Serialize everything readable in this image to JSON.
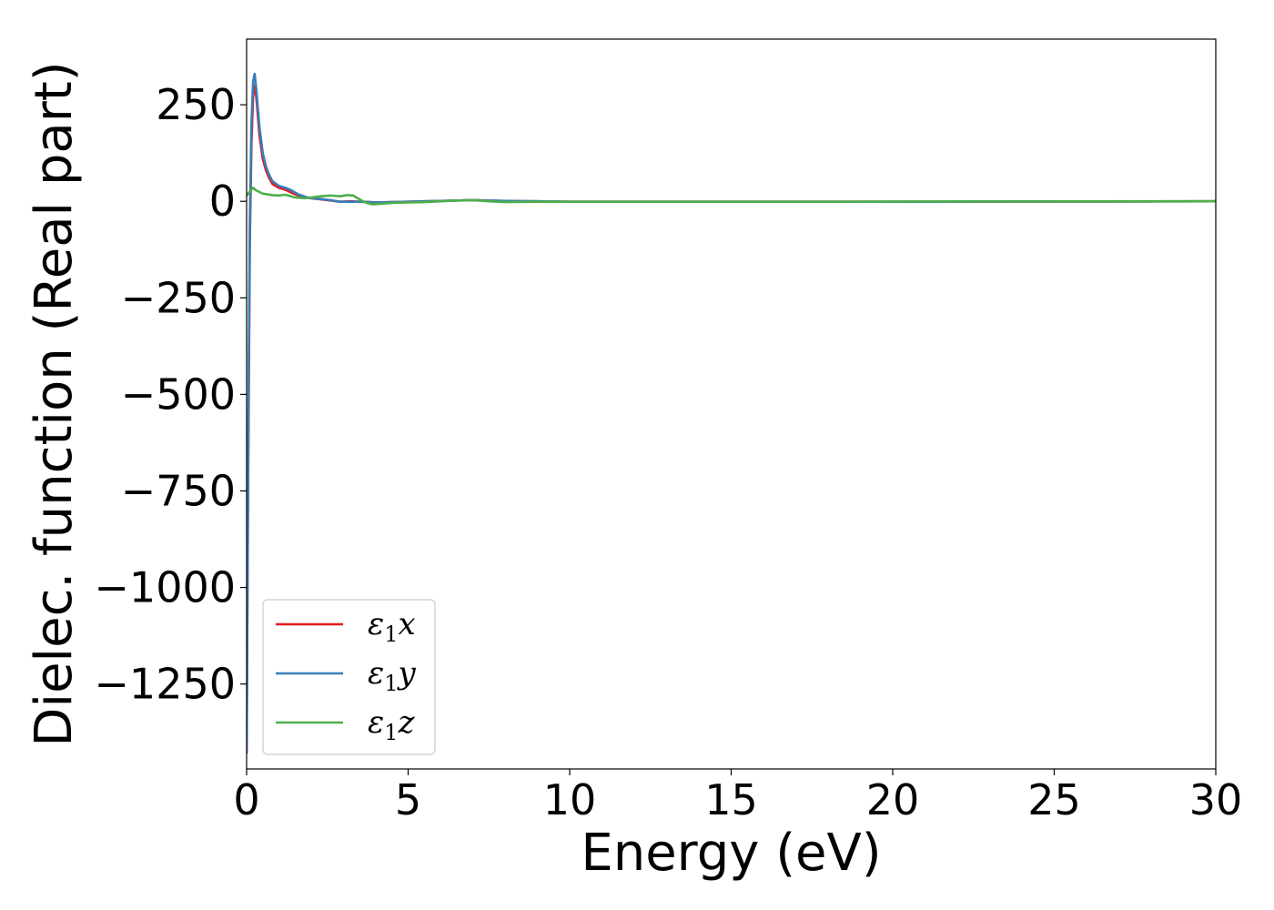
{
  "chart_data": {
    "type": "line",
    "title": "",
    "xlabel": "Energy (eV)",
    "ylabel": "Dielec. function (Real part)",
    "xlim": [
      0,
      30
    ],
    "ylim": [
      -1470,
      420
    ],
    "xticks": [
      0,
      5,
      10,
      15,
      20,
      25,
      30
    ],
    "xtick_labels": [
      "0",
      "5",
      "10",
      "15",
      "20",
      "25",
      "30"
    ],
    "yticks": [
      250,
      0,
      -250,
      -500,
      -750,
      -1000,
      -1250
    ],
    "ytick_labels": [
      "250",
      "0",
      "−250",
      "−500",
      "−750",
      "−1000",
      "−1250"
    ],
    "grid": false,
    "legend_position": "lower-left",
    "series": [
      {
        "name": "ε₁x",
        "legend_base": "ε",
        "legend_sub": "1",
        "legend_var": "x",
        "color": "#e41a1c",
        "x": [
          0.0,
          0.05,
          0.1,
          0.15,
          0.2,
          0.25,
          0.3,
          0.4,
          0.5,
          0.6,
          0.7,
          0.8,
          1.0,
          1.2,
          1.4,
          1.6,
          1.8,
          2.0,
          2.3,
          2.6,
          2.9,
          3.2,
          3.5,
          3.8,
          4.0,
          4.5,
          5.0,
          5.5,
          6.0,
          6.5,
          7.0,
          7.5,
          8.0,
          9.0,
          10.0,
          12.0,
          15.0,
          18.0,
          21.0,
          24.0,
          27.0,
          30.0
        ],
        "y": [
          -1430,
          -700,
          -100,
          150,
          270,
          300,
          270,
          170,
          110,
          80,
          60,
          45,
          35,
          30,
          22,
          15,
          10,
          8,
          5,
          2,
          -1,
          0,
          -1,
          -2,
          -3,
          -2,
          -1,
          0,
          1,
          2,
          3,
          2,
          1,
          0,
          -1,
          -1,
          -1,
          -1,
          -1,
          -0.5,
          -0.5,
          0
        ]
      },
      {
        "name": "ε₁y",
        "legend_base": "ε",
        "legend_sub": "1",
        "legend_var": "y",
        "color": "#377eb8",
        "x": [
          0.0,
          0.05,
          0.1,
          0.15,
          0.2,
          0.25,
          0.3,
          0.4,
          0.5,
          0.6,
          0.7,
          0.8,
          1.0,
          1.2,
          1.4,
          1.6,
          1.8,
          2.0,
          2.3,
          2.6,
          2.9,
          3.2,
          3.5,
          3.8,
          4.0,
          4.5,
          5.0,
          5.5,
          6.0,
          6.5,
          7.0,
          7.5,
          8.0,
          9.0,
          10.0,
          12.0,
          15.0,
          18.0,
          21.0,
          24.0,
          27.0,
          30.0
        ],
        "y": [
          -1430,
          -650,
          -50,
          200,
          310,
          330,
          290,
          190,
          125,
          90,
          68,
          52,
          40,
          35,
          28,
          18,
          12,
          8,
          6,
          3,
          -1,
          -1,
          -1,
          -2,
          -3,
          -2,
          -1,
          0,
          1,
          2,
          3,
          2,
          1,
          0,
          -1,
          -1,
          -1,
          -1,
          -1,
          -0.5,
          -0.5,
          0
        ]
      },
      {
        "name": "ε₁z",
        "legend_base": "ε",
        "legend_sub": "1",
        "legend_var": "z",
        "color": "#4daf4a",
        "x": [
          0.0,
          0.1,
          0.2,
          0.3,
          0.5,
          0.8,
          1.0,
          1.2,
          1.5,
          1.8,
          2.0,
          2.3,
          2.6,
          2.9,
          3.1,
          3.3,
          3.5,
          3.7,
          3.9,
          4.2,
          4.5,
          5.0,
          5.5,
          6.0,
          6.5,
          7.0,
          7.5,
          8.0,
          9.0,
          10.0,
          12.0,
          15.0,
          18.0,
          21.0,
          24.0,
          27.0,
          30.0
        ],
        "y": [
          15,
          25,
          35,
          28,
          20,
          16,
          15,
          17,
          10,
          8,
          10,
          13,
          15,
          13,
          16,
          15,
          5,
          -4,
          -8,
          -6,
          -4,
          -3,
          -2,
          0,
          2,
          3,
          0,
          -2,
          -1,
          -1,
          -1,
          -1,
          -1,
          -0.5,
          -0.5,
          0,
          0
        ]
      }
    ]
  }
}
